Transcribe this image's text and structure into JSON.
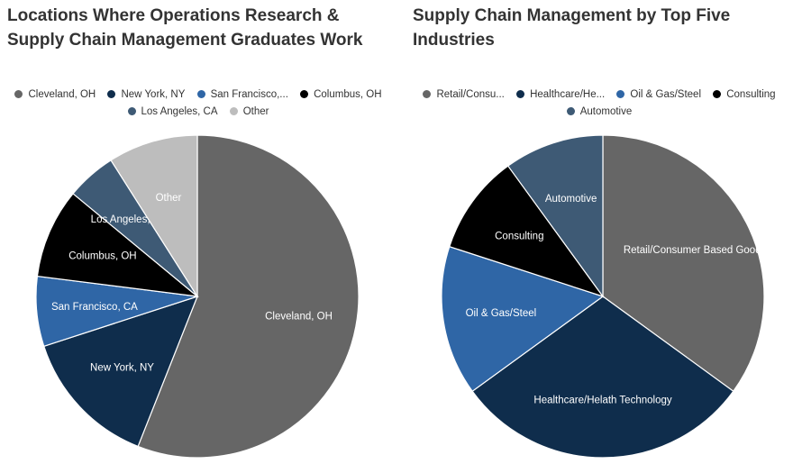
{
  "chart_data": [
    {
      "type": "pie",
      "title": "Locations Where Operations Research & Supply Chain Management Graduates Work",
      "title_lines": [
        "Locations Where Operations Research &",
        "Supply Chain Management Graduates Work"
      ],
      "legend_position": "top",
      "slices": [
        {
          "label": "Cleveland, OH",
          "legend_label": "Cleveland, OH",
          "value": 56,
          "color": "#666666",
          "label_color": "#ffffff"
        },
        {
          "label": "New York, NY",
          "legend_label": "New York, NY",
          "value": 14,
          "color": "#0f2d4c",
          "label_color": "#ffffff"
        },
        {
          "label": "San Francisco, CA",
          "legend_label": "San Francisco,...",
          "value": 7,
          "color": "#2f66a6",
          "label_color": "#ffffff"
        },
        {
          "label": "Columbus, OH",
          "legend_label": "Columbus, OH",
          "value": 9,
          "color": "#000000",
          "label_color": "#ffffff"
        },
        {
          "label": "Los Angeles, CA",
          "legend_label": "Los Angeles, CA",
          "value": 5,
          "color": "#3e5a75",
          "label_color": "#ffffff"
        },
        {
          "label": "Other",
          "legend_label": "Other",
          "value": 9,
          "color": "#bdbdbd",
          "label_color": "#ffffff"
        }
      ]
    },
    {
      "type": "pie",
      "title": "Supply Chain Management by Top Five Industries",
      "title_lines": [
        "Supply Chain Management by Top Five",
        "Industries"
      ],
      "legend_position": "top",
      "slices": [
        {
          "label": "Retail/Consumer Based Goods",
          "legend_label": "Retail/Consu...",
          "value": 35,
          "color": "#666666",
          "label_color": "#ffffff"
        },
        {
          "label": "Healthcare/Helath Technology",
          "legend_label": "Healthcare/He...",
          "value": 30,
          "color": "#0f2d4c",
          "label_color": "#ffffff"
        },
        {
          "label": "Oil & Gas/Steel",
          "legend_label": "Oil & Gas/Steel",
          "value": 15,
          "color": "#2f66a6",
          "label_color": "#ffffff"
        },
        {
          "label": "Consulting",
          "legend_label": "Consulting",
          "value": 10,
          "color": "#000000",
          "label_color": "#ffffff"
        },
        {
          "label": "Automotive",
          "legend_label": "Automotive",
          "value": 10,
          "color": "#3e5a75",
          "label_color": "#ffffff"
        }
      ]
    }
  ]
}
